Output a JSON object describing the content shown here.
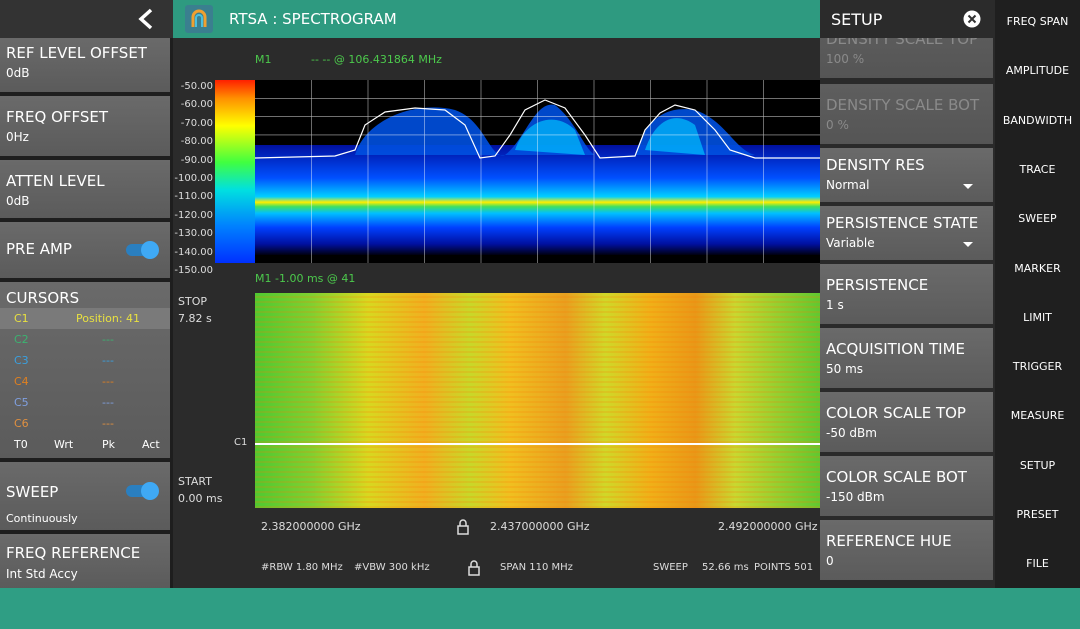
{
  "header": {
    "title": "RTSA : SPECTROGRAM"
  },
  "left_panel": {
    "ref_level_offset": {
      "label": "REF LEVEL OFFSET",
      "value": "0dB"
    },
    "freq_offset": {
      "label": "FREQ OFFSET",
      "value": "0Hz"
    },
    "atten_level": {
      "label": "ATTEN LEVEL",
      "value": "0dB"
    },
    "pre_amp": {
      "label": "PRE AMP"
    },
    "cursors": {
      "title": "CURSORS",
      "rows": [
        [
          "C1",
          "Position: 41"
        ],
        [
          "C2",
          "---"
        ],
        [
          "C3",
          "---"
        ],
        [
          "C4",
          "---"
        ],
        [
          "C5",
          "---"
        ],
        [
          "C6",
          "---"
        ]
      ],
      "footer": [
        "T0",
        "Wrt",
        "Pk",
        "Act"
      ]
    },
    "sweep": {
      "label": "SWEEP",
      "value": "Continuously"
    },
    "freq_reference": {
      "label": "FREQ REFERENCE",
      "value": "Int Std Accy"
    }
  },
  "display": {
    "marker_top": {
      "name": "M1",
      "readout": "-- -- @ 106.431864 MHz"
    },
    "y_labels": [
      "-50.00",
      "-60.00",
      "-70.00",
      "-80.00",
      "-90.00",
      "-100.00",
      "-110.00",
      "-120.00",
      "-130.00",
      "-140.00",
      "-150.00"
    ],
    "marker_bottom": "M1 -1.00 ms @ 41",
    "stop": {
      "label": "STOP",
      "value": "7.82 s"
    },
    "start": {
      "label": "START",
      "value": "0.00 ms"
    },
    "cursor_line": "C1",
    "freq_labels": [
      "2.382000000 GHz",
      "2.437000000 GHz",
      "2.492000000 GHz"
    ],
    "status": {
      "rbw": "#RBW 1.80 MHz",
      "vbw": "#VBW 300 kHz",
      "span": "SPAN 110 MHz",
      "sweep_label": "SWEEP",
      "sweep_time": "52.66 ms",
      "points": "POINTS 501"
    }
  },
  "setup_panel": {
    "title": "SETUP",
    "items": [
      {
        "label": "DENSITY SCALE TOP",
        "value": "100 %"
      },
      {
        "label": "DENSITY SCALE BOT",
        "value": "0 %"
      },
      {
        "label": "DENSITY RES",
        "value": "Normal"
      },
      {
        "label": "PERSISTENCE STATE",
        "value": "Variable"
      },
      {
        "label": "PERSISTENCE",
        "value": "1 s"
      },
      {
        "label": "ACQUISITION TIME",
        "value": "50 ms"
      },
      {
        "label": "COLOR SCALE TOP",
        "value": "-50 dBm"
      },
      {
        "label": "COLOR SCALE BOT",
        "value": "-150 dBm"
      },
      {
        "label": "REFERENCE HUE",
        "value": "0"
      }
    ]
  },
  "menu": [
    "FREQ SPAN",
    "AMPLITUDE",
    "BANDWIDTH",
    "TRACE",
    "SWEEP",
    "MARKER",
    "LIMIT",
    "TRIGGER",
    "MEASURE",
    "SETUP",
    "PRESET",
    "FILE"
  ]
}
